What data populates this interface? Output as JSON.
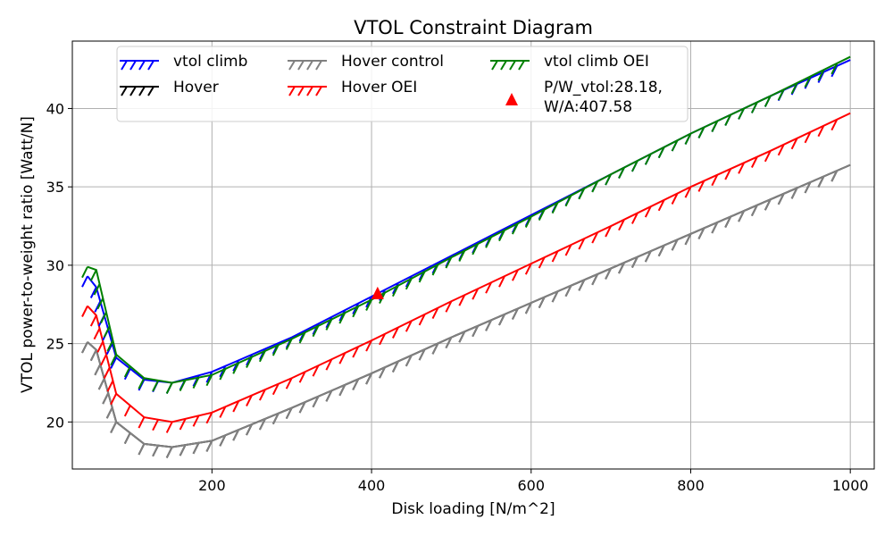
{
  "chart_data": {
    "type": "line",
    "title": "VTOL Constraint Diagram",
    "xlabel": "Disk loading [N/m^2]",
    "ylabel": "VTOL power-to-weight ratio [Watt/N]",
    "xlim": [
      25,
      1030
    ],
    "ylim": [
      17,
      44.3
    ],
    "xticks": [
      200,
      400,
      600,
      800,
      1000
    ],
    "yticks": [
      20,
      25,
      30,
      35,
      40
    ],
    "grid": true,
    "legend_position": "top",
    "series": [
      {
        "name": "vtol climb",
        "color": "#0000ff",
        "x": [
          44,
          55,
          80,
          115,
          150,
          200,
          300,
          400,
          500,
          600,
          700,
          800,
          900,
          1000
        ],
        "y": [
          29.3,
          28.6,
          24.1,
          22.7,
          22.5,
          23.2,
          25.4,
          28.0,
          30.6,
          33.2,
          35.8,
          38.4,
          40.8,
          43.1
        ]
      },
      {
        "name": "Hover",
        "color": "#000000",
        "x": [
          44,
          55,
          80,
          115,
          150,
          200,
          300,
          400,
          500,
          600,
          700,
          800,
          900,
          1000
        ],
        "y": [
          25.1,
          24.6,
          20.0,
          18.6,
          18.4,
          18.8,
          20.9,
          23.1,
          25.4,
          27.6,
          29.8,
          32.0,
          34.2,
          36.4
        ]
      },
      {
        "name": "Hover control",
        "color": "#808080",
        "x": [
          44,
          55,
          80,
          115,
          150,
          200,
          300,
          400,
          500,
          600,
          700,
          800,
          900,
          1000
        ],
        "y": [
          25.1,
          24.6,
          20.0,
          18.6,
          18.4,
          18.8,
          20.9,
          23.1,
          25.4,
          27.6,
          29.8,
          32.0,
          34.2,
          36.4
        ]
      },
      {
        "name": "Hover OEI",
        "color": "#ff0000",
        "x": [
          44,
          55,
          80,
          115,
          150,
          200,
          300,
          400,
          500,
          600,
          700,
          800,
          900,
          1000
        ],
        "y": [
          27.4,
          26.8,
          21.8,
          20.3,
          20.0,
          20.6,
          22.8,
          25.2,
          27.7,
          30.1,
          32.5,
          35.0,
          37.3,
          39.7
        ]
      },
      {
        "name": "vtol climb OEI",
        "color": "#008000",
        "x": [
          44,
          55,
          80,
          115,
          150,
          200,
          300,
          400,
          500,
          600,
          700,
          800,
          900,
          1000
        ],
        "y": [
          29.9,
          29.7,
          24.3,
          22.8,
          22.5,
          23.0,
          25.3,
          27.8,
          30.5,
          33.1,
          35.8,
          38.4,
          40.8,
          43.3
        ]
      }
    ],
    "marker": {
      "name": "P/W_vtol:28.18,\nW/A:407.58",
      "label_lines": [
        "P/W_vtol:28.18,",
        "W/A:407.58"
      ],
      "x": 407.58,
      "y": 28.18,
      "color": "#ff0000"
    }
  }
}
